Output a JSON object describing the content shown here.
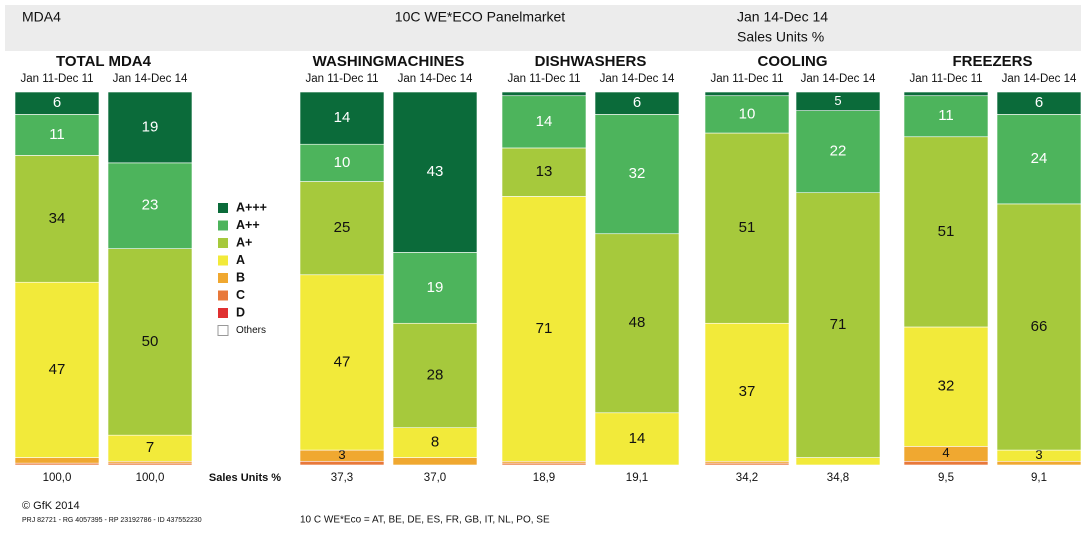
{
  "header": {
    "left": "MDA4",
    "center": "10C WE*ECO Panelmarket",
    "period": "Jan 14-Dec 14",
    "measure": "Sales Units %"
  },
  "chart_data": {
    "type": "bar",
    "stacked": true,
    "groups": [
      "TOTAL MDA4",
      "WASHINGMACHINES",
      "DISHWASHERS",
      "COOLING",
      "FREEZERS"
    ],
    "categories": [
      "Jan 11-Dec 11",
      "Jan 14-Dec 14",
      "Jan 11-Dec 11",
      "Jan 14-Dec 14",
      "Jan 11-Dec 11",
      "Jan 14-Dec 14",
      "Jan 11-Dec 11",
      "Jan 14-Dec 14",
      "Jan 11-Dec 11",
      "Jan 14-Dec 14"
    ],
    "ylim": [
      0,
      100
    ],
    "series": [
      {
        "name": "A+++",
        "color": "#0b6b3a",
        "values": [
          6,
          19,
          14,
          43,
          1,
          6,
          1,
          5,
          1,
          6
        ],
        "value_labels": [
          "6",
          "19",
          "14",
          "43",
          null,
          "6",
          null,
          "5",
          null,
          "6"
        ]
      },
      {
        "name": "A++",
        "color": "#4db45c",
        "values": [
          11,
          23,
          10,
          19,
          14,
          32,
          10,
          22,
          11,
          24
        ],
        "value_labels": [
          "11",
          "23",
          "10",
          "19",
          "14",
          "32",
          "10",
          "22",
          "11",
          "24"
        ]
      },
      {
        "name": "A+",
        "color": "#a6c93c",
        "values": [
          34,
          50,
          25,
          28,
          13,
          48,
          51,
          71,
          51,
          66
        ],
        "value_labels": [
          "34",
          "50",
          "25",
          "28",
          "13",
          "48",
          "51",
          "71",
          "51",
          "66"
        ]
      },
      {
        "name": "A",
        "color": "#f2ea3a",
        "values": [
          47,
          7,
          47,
          8,
          71,
          14,
          37,
          2,
          32,
          3
        ],
        "value_labels": [
          "47",
          "7",
          "47",
          "8",
          "71",
          "14",
          "37",
          null,
          "32",
          "3"
        ]
      },
      {
        "name": "B",
        "color": "#f0a830",
        "values": [
          1.5,
          0.5,
          3,
          2,
          0.5,
          0,
          0.5,
          0,
          4,
          1
        ],
        "value_labels": [
          null,
          null,
          "3",
          null,
          null,
          null,
          null,
          null,
          "4",
          null
        ]
      },
      {
        "name": "C",
        "color": "#e8783a",
        "values": [
          0.5,
          0.5,
          1,
          0,
          0.5,
          0,
          0.5,
          0,
          1,
          0
        ],
        "value_labels": [
          null,
          null,
          null,
          null,
          null,
          null,
          null,
          null,
          null,
          null
        ]
      },
      {
        "name": "D",
        "color": "#e03030",
        "values": [
          0,
          0,
          0,
          0,
          0,
          0,
          0,
          0,
          0,
          0
        ],
        "value_labels": [
          null,
          null,
          null,
          null,
          null,
          null,
          null,
          null,
          null,
          null
        ]
      },
      {
        "name": "Others",
        "color": "#ffffff",
        "values": [
          0,
          0,
          0,
          0,
          0,
          0,
          0,
          0,
          0,
          0
        ],
        "value_labels": [
          null,
          null,
          null,
          null,
          null,
          null,
          null,
          null,
          null,
          null
        ]
      }
    ],
    "totals_label": "Sales Units %",
    "totals": [
      {
        "value": 100,
        "label": "100,0"
      },
      {
        "value": 100,
        "label": "100,0"
      },
      {
        "value": 37.3,
        "label": "37,3"
      },
      {
        "value": 37,
        "label": "37,0"
      },
      {
        "value": 18.9,
        "label": "18,9"
      },
      {
        "value": 19.1,
        "label": "19,1"
      },
      {
        "value": 34.2,
        "label": "34,2"
      },
      {
        "value": 34.8,
        "label": "34,8"
      },
      {
        "value": 9.5,
        "label": "9,5"
      },
      {
        "value": 9.1,
        "label": "9,1"
      }
    ]
  },
  "footer": {
    "copyright": "© GfK 2014",
    "ids": "PRJ 82721 - RG 4057395 - RP 23192786 - ID 437552230",
    "note": "10 C WE*Eco = AT, BE, DE, ES, FR, GB, IT, NL, PO, SE"
  }
}
